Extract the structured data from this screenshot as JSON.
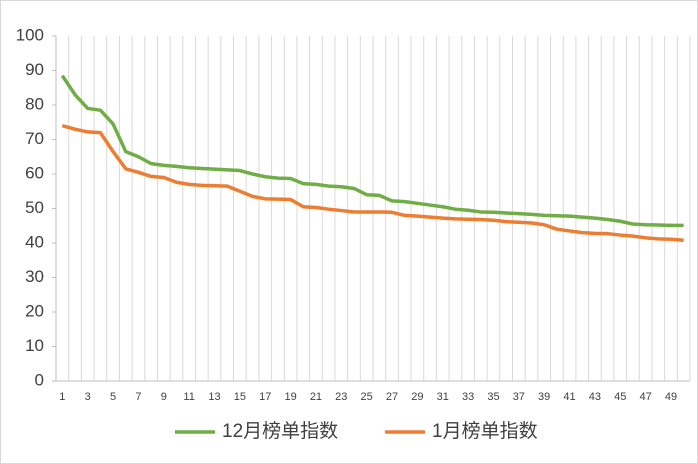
{
  "chart_data": {
    "type": "line",
    "categories": [
      "1",
      null,
      "3",
      null,
      "5",
      null,
      "7",
      null,
      "9",
      null,
      "11",
      null,
      "13",
      null,
      "15",
      null,
      "17",
      null,
      "19",
      null,
      "21",
      null,
      "23",
      null,
      "25",
      null,
      "27",
      null,
      "29",
      null,
      "31",
      null,
      "33",
      null,
      "35",
      null,
      "37",
      null,
      "39",
      null,
      "41",
      null,
      "43",
      null,
      "45",
      null,
      "47",
      null,
      "49",
      null
    ],
    "series": [
      {
        "name": "12月榜单指数",
        "color": "#70ad47",
        "values": [
          88.5,
          83,
          79,
          78.5,
          74.5,
          66.5,
          65,
          63,
          62.5,
          62.2,
          61.8,
          61.6,
          61.4,
          61.2,
          61,
          60,
          59.2,
          58.8,
          58.7,
          57.2,
          57,
          56.5,
          56.3,
          55.8,
          54,
          53.8,
          52.2,
          52,
          51.5,
          51,
          50.5,
          49.8,
          49.5,
          49,
          48.9,
          48.7,
          48.5,
          48.3,
          48,
          47.9,
          47.8,
          47.5,
          47.2,
          46.8,
          46.3,
          45.5,
          45.3,
          45.2,
          45.1,
          45.1
        ]
      },
      {
        "name": "1月榜单指数",
        "color": "#ed7d31",
        "values": [
          74,
          73,
          72.2,
          72,
          66.5,
          61.5,
          60.5,
          59.3,
          59,
          57.6,
          57,
          56.7,
          56.6,
          56.5,
          55,
          53.5,
          52.8,
          52.7,
          52.6,
          50.5,
          50.3,
          49.8,
          49.4,
          49,
          49,
          49,
          48.9,
          48,
          47.8,
          47.5,
          47.2,
          47,
          46.9,
          46.8,
          46.6,
          46.2,
          46,
          45.8,
          45.3,
          44,
          43.5,
          43,
          42.8,
          42.7,
          42.3,
          42,
          41.5,
          41.2,
          41.1,
          40.8
        ]
      }
    ],
    "ylim": [
      0,
      100
    ],
    "yticks": [
      0,
      10,
      20,
      30,
      40,
      50,
      60,
      70,
      80,
      90,
      100
    ],
    "xgrid": true,
    "legend": "bottom"
  }
}
